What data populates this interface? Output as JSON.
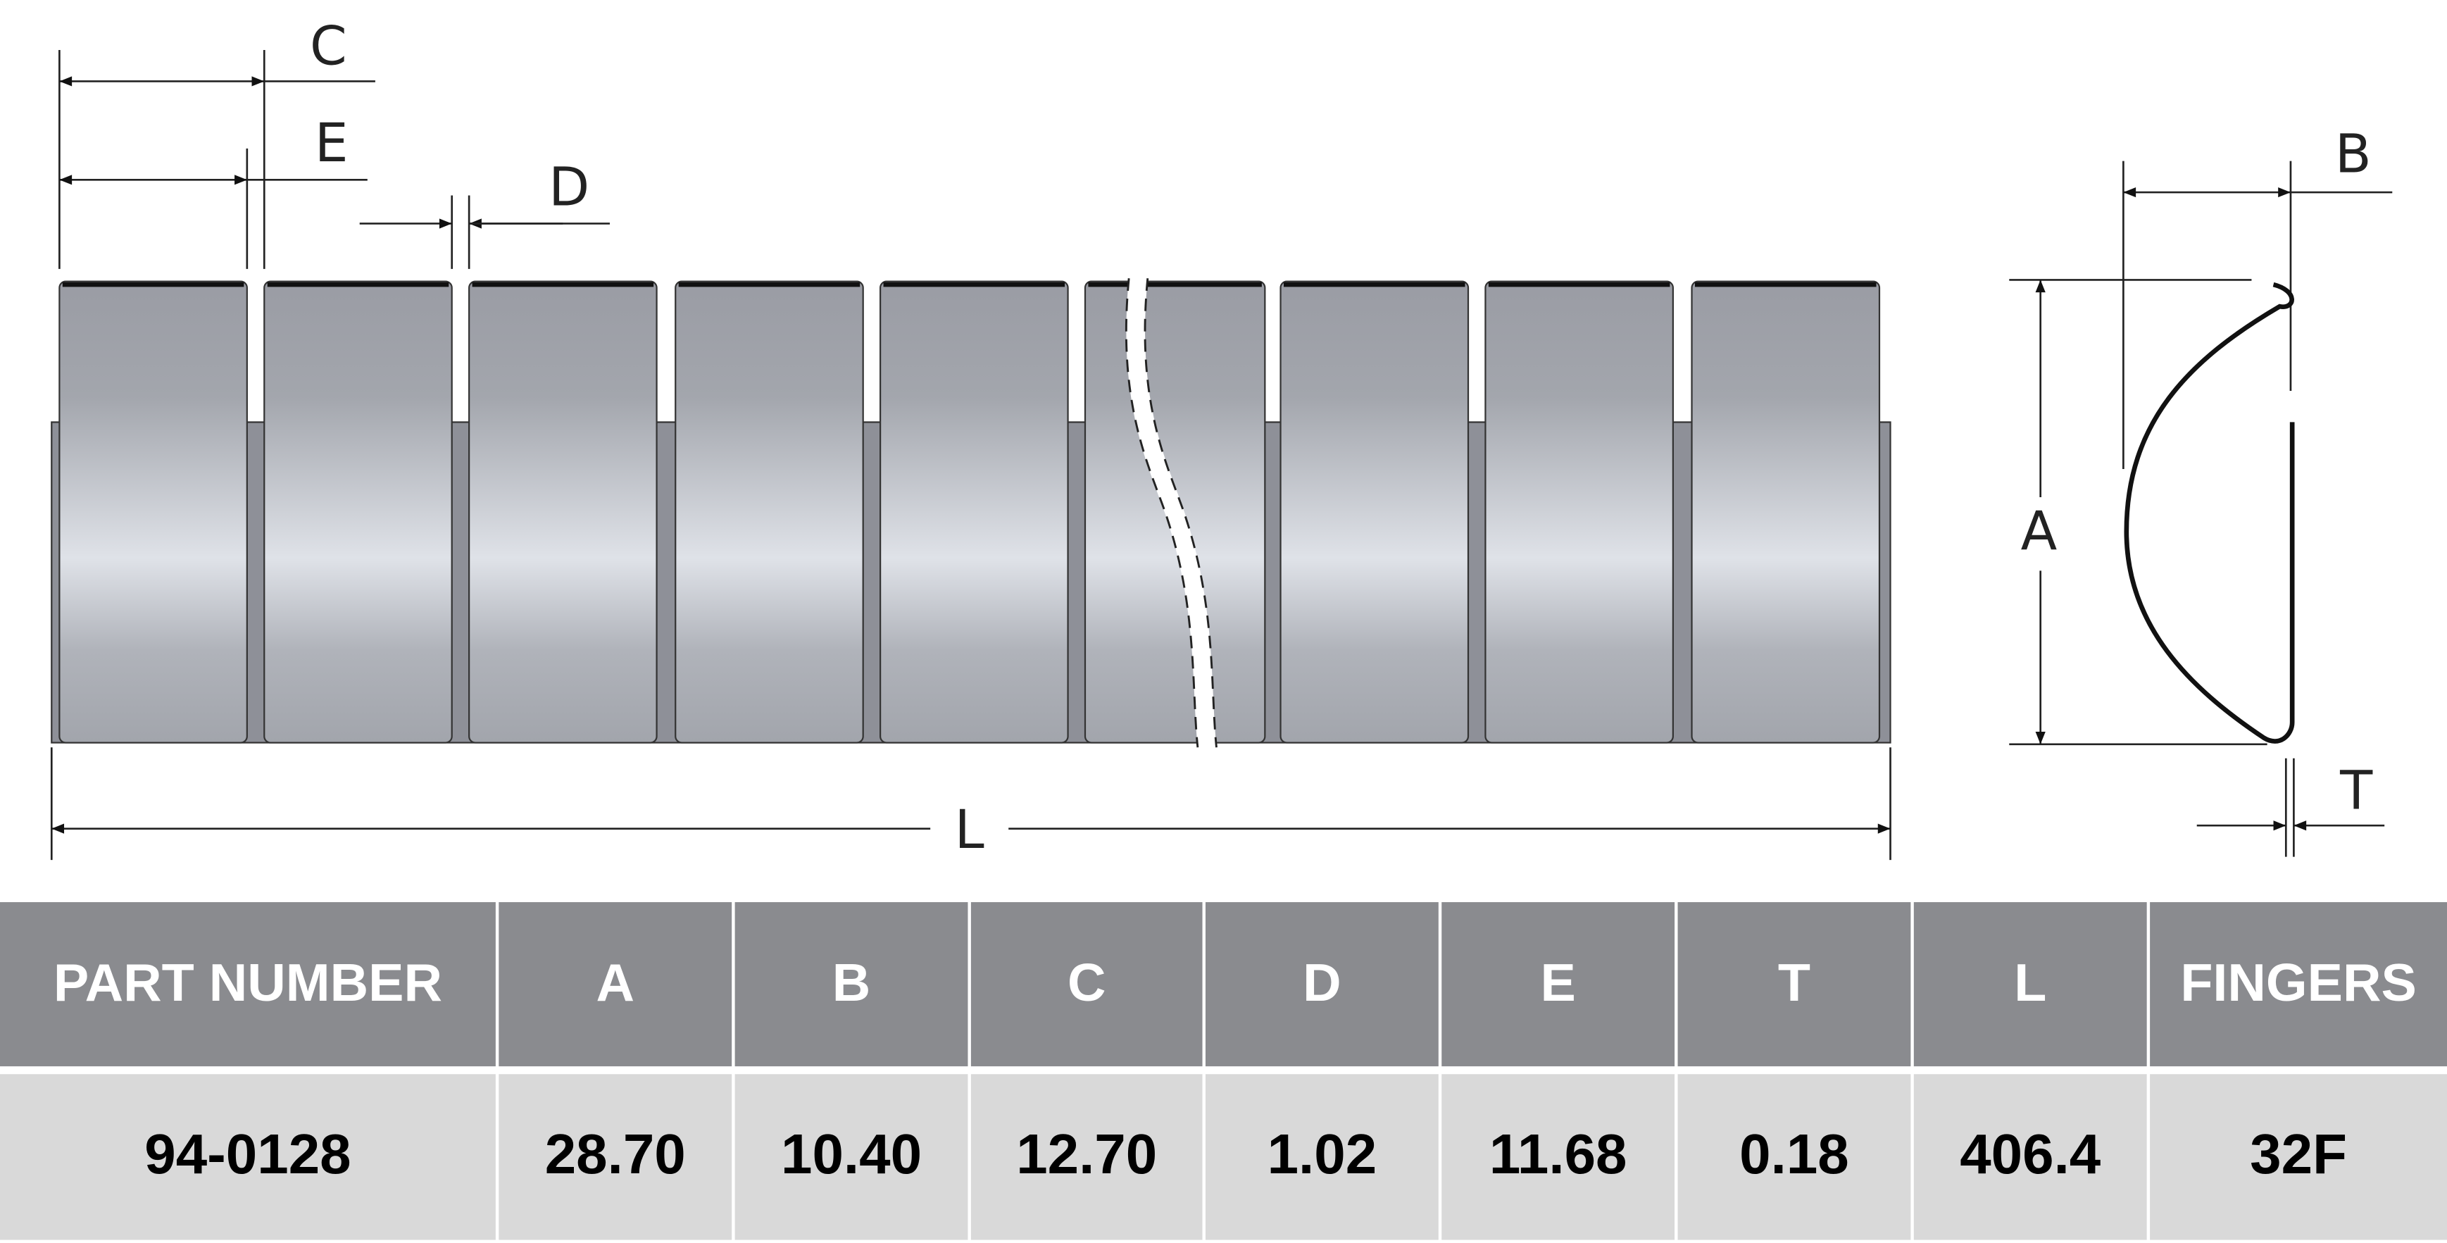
{
  "diagram": {
    "labels": {
      "c": "C",
      "e": "E",
      "d": "D",
      "l": "L",
      "a": "A",
      "b": "B",
      "t": "T"
    }
  },
  "table": {
    "header": [
      "PART NUMBER",
      "A",
      "B",
      "C",
      "D",
      "E",
      "T",
      "L",
      "FINGERS"
    ],
    "rows": [
      [
        "94-0128",
        "28.70",
        "10.40",
        "12.70",
        "1.02",
        "11.68",
        "0.18",
        "406.4",
        "32F"
      ]
    ]
  }
}
